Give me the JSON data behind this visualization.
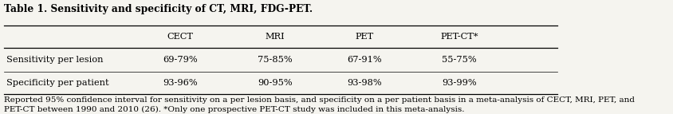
{
  "title": "Table 1. Sensitivity and specificity of CT, MRI, FDG-PET.",
  "col_headers": [
    "",
    "CECT",
    "MRI",
    "PET",
    "PET-CT*"
  ],
  "rows": [
    [
      "Sensitivity per lesion",
      "69-79%",
      "75-85%",
      "67-91%",
      "55-75%"
    ],
    [
      "Specificity per patient",
      "93-96%",
      "90-95%",
      "93-98%",
      "93-99%"
    ]
  ],
  "footnote_line1": "Reported 95% confidence interval for sensitivity on a per lesion basis, and specificity on a per patient basis in a meta-analysis of CECT, MRI, PET, and",
  "footnote_line2": "PET-CT between 1990 and 2010 (26). *Only one prospective PET-CT study was included in this meta-analysis.",
  "bg_color": "#f5f4ef",
  "border_color": "#000000",
  "header_fontsize": 8.2,
  "cell_fontsize": 8.2,
  "footnote_fontsize": 7.5,
  "title_fontsize": 8.8
}
